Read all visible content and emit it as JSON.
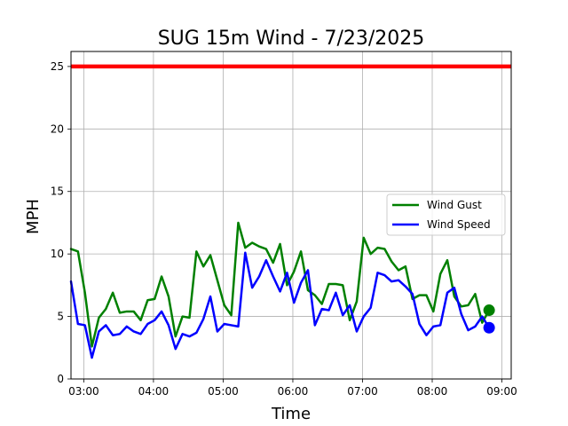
{
  "chart_data": {
    "type": "line",
    "title": "SUG 15m Wind - 7/23/2025",
    "xlabel": "Time",
    "ylabel": "MPH",
    "x_tick_labels": [
      "03:00",
      "04:00",
      "05:00",
      "06:00",
      "07:00",
      "08:00",
      "09:00"
    ],
    "x_ticks_time": [
      "03:00",
      "04:00",
      "05:00",
      "06:00",
      "07:00",
      "08:00",
      "09:00"
    ],
    "x_range": [
      "02:49",
      "09:08"
    ],
    "ylim": [
      0,
      26.2
    ],
    "y_ticks": [
      0,
      5,
      10,
      15,
      20,
      25
    ],
    "grid": true,
    "legend_position": "center-right",
    "threshold": {
      "value": 25,
      "color": "#ff0000"
    },
    "series": [
      {
        "name": "Wind Gust",
        "color": "#008000",
        "x": [
          "02:49",
          "02:55",
          "03:01",
          "03:07",
          "03:13",
          "03:19",
          "03:25",
          "03:31",
          "03:37",
          "03:43",
          "03:49",
          "03:55",
          "04:01",
          "04:07",
          "04:13",
          "04:19",
          "04:25",
          "04:31",
          "04:37",
          "04:43",
          "04:49",
          "04:55",
          "05:01",
          "05:07",
          "05:13",
          "05:19",
          "05:25",
          "05:31",
          "05:37",
          "05:43",
          "05:49",
          "05:55",
          "06:01",
          "06:07",
          "06:13",
          "06:19",
          "06:25",
          "06:31",
          "06:37",
          "06:43",
          "06:49",
          "06:55",
          "07:01",
          "07:07",
          "07:13",
          "07:19",
          "07:25",
          "07:31",
          "07:37",
          "07:43",
          "07:49",
          "07:55",
          "08:01",
          "08:07",
          "08:13",
          "08:19",
          "08:25",
          "08:31",
          "08:37",
          "08:43",
          "08:49"
        ],
        "values": [
          10.4,
          10.2,
          6.9,
          2.6,
          4.9,
          5.6,
          6.9,
          5.3,
          5.4,
          5.4,
          4.7,
          6.3,
          6.4,
          8.2,
          6.6,
          3.4,
          5.0,
          4.9,
          10.2,
          9.0,
          9.9,
          7.9,
          5.9,
          5.1,
          12.5,
          10.5,
          10.9,
          10.6,
          10.4,
          9.3,
          10.8,
          7.5,
          8.6,
          10.2,
          7.1,
          6.7,
          6.0,
          7.6,
          7.6,
          7.5,
          4.7,
          6.2,
          11.3,
          10.0,
          10.5,
          10.4,
          9.4,
          8.7,
          9.0,
          6.4,
          6.7,
          6.7,
          5.4,
          8.4,
          9.5,
          6.6,
          5.8,
          5.9,
          6.8,
          4.5,
          5.5
        ],
        "last_point": {
          "x": "08:49",
          "value": 5.5
        }
      },
      {
        "name": "Wind Speed",
        "color": "#0000ff",
        "x": [
          "02:49",
          "02:55",
          "03:01",
          "03:07",
          "03:13",
          "03:19",
          "03:25",
          "03:31",
          "03:37",
          "03:43",
          "03:49",
          "03:55",
          "04:01",
          "04:07",
          "04:13",
          "04:19",
          "04:25",
          "04:31",
          "04:37",
          "04:43",
          "04:49",
          "04:55",
          "05:01",
          "05:07",
          "05:13",
          "05:19",
          "05:25",
          "05:31",
          "05:37",
          "05:43",
          "05:49",
          "05:55",
          "06:01",
          "06:07",
          "06:13",
          "06:19",
          "06:25",
          "06:31",
          "06:37",
          "06:43",
          "06:49",
          "06:55",
          "07:01",
          "07:07",
          "07:13",
          "07:19",
          "07:25",
          "07:31",
          "07:37",
          "07:43",
          "07:49",
          "07:55",
          "08:01",
          "08:07",
          "08:13",
          "08:19",
          "08:25",
          "08:31",
          "08:37",
          "08:43",
          "08:49"
        ],
        "values": [
          7.8,
          4.4,
          4.3,
          1.7,
          3.8,
          4.3,
          3.5,
          3.6,
          4.2,
          3.8,
          3.6,
          4.4,
          4.7,
          5.4,
          4.3,
          2.4,
          3.6,
          3.4,
          3.7,
          4.8,
          6.6,
          3.8,
          4.4,
          4.3,
          4.2,
          10.1,
          7.3,
          8.2,
          9.5,
          8.2,
          7.0,
          8.5,
          6.1,
          7.7,
          8.7,
          4.3,
          5.6,
          5.5,
          6.9,
          5.1,
          5.9,
          3.8,
          5.0,
          5.7,
          8.5,
          8.3,
          7.8,
          7.9,
          7.4,
          6.8,
          4.4,
          3.5,
          4.2,
          4.3,
          6.9,
          7.3,
          5.2,
          3.9,
          4.2,
          5.0,
          4.1
        ],
        "last_point": {
          "x": "08:49",
          "value": 4.1
        }
      }
    ]
  }
}
